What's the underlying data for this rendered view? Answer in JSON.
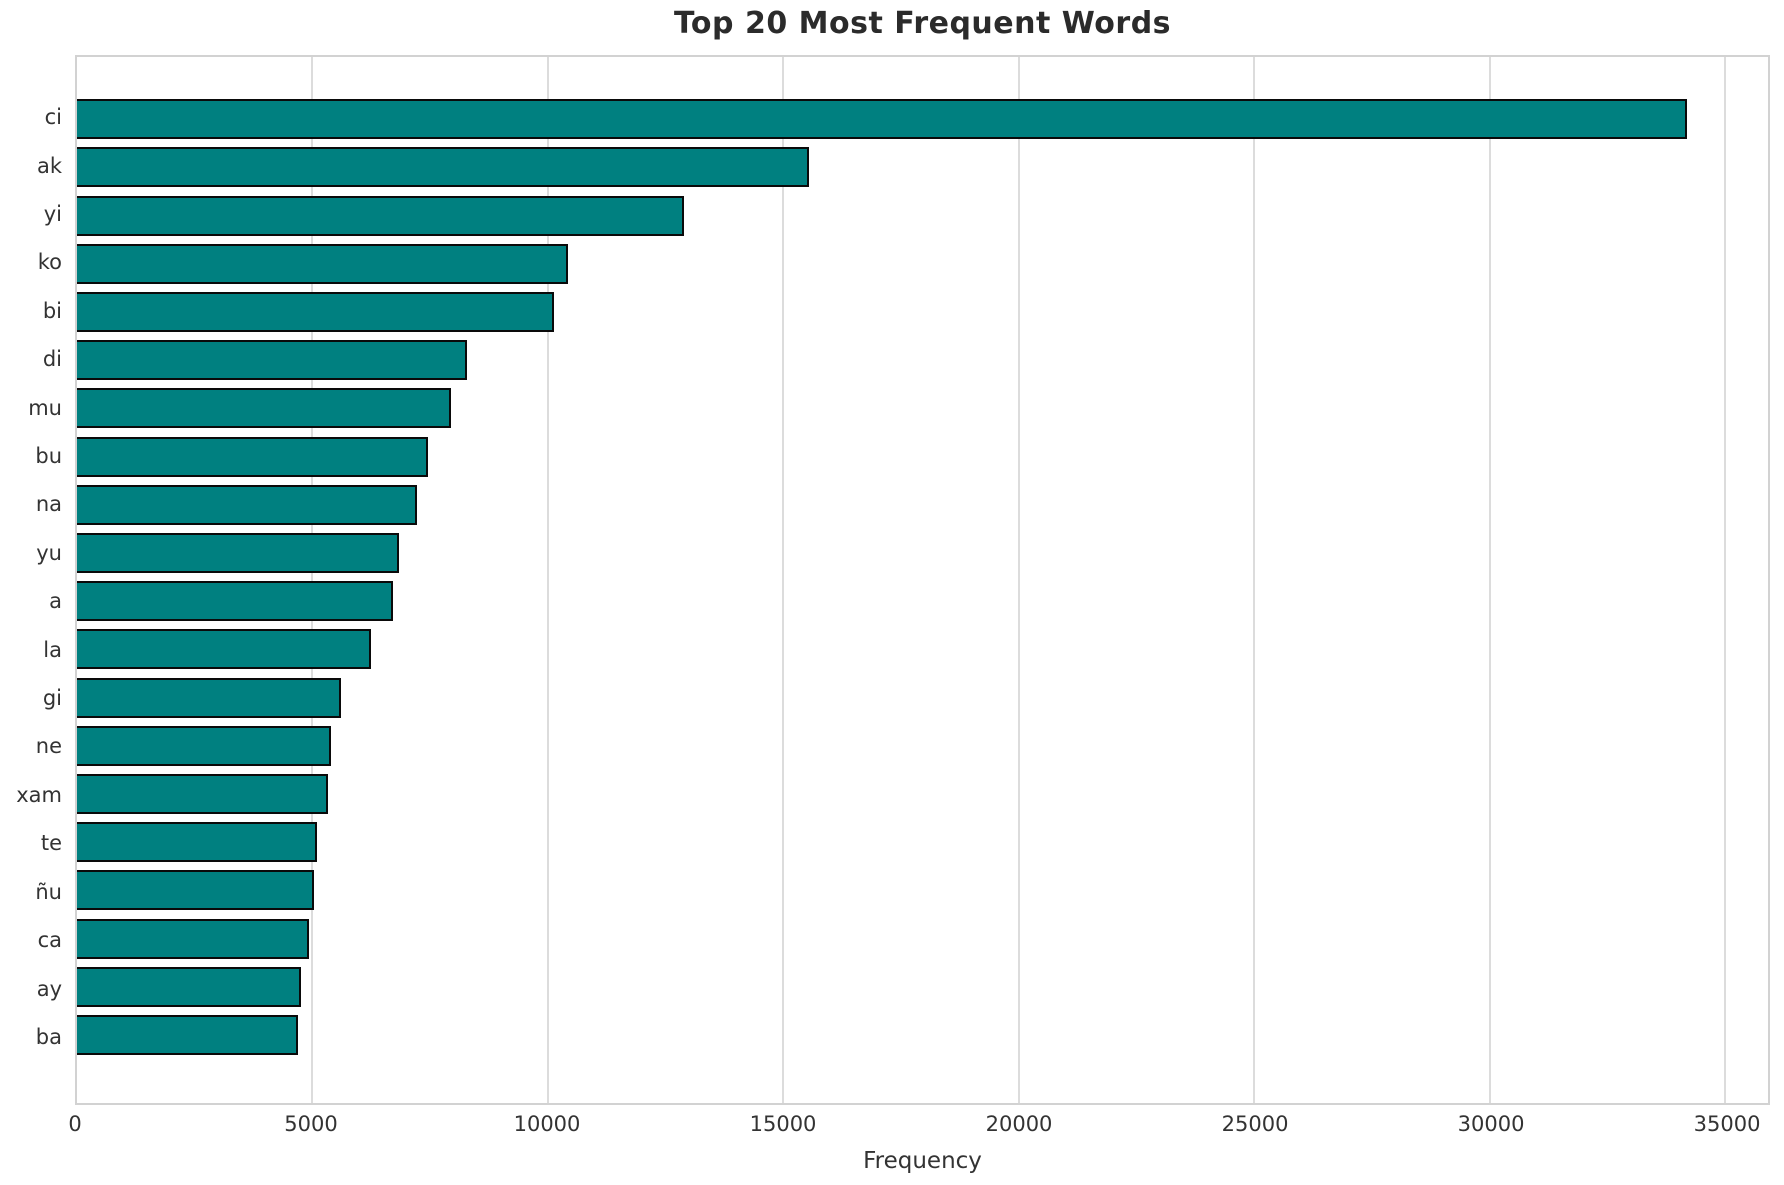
{
  "title": "Top 20 Most Frequent Words",
  "chart_data": {
    "type": "bar",
    "orientation": "horizontal",
    "title": "Top 20 Most Frequent Words",
    "xlabel": "Frequency",
    "ylabel": "",
    "categories": [
      "ci",
      "ak",
      "yi",
      "ko",
      "bi",
      "di",
      "mu",
      "bu",
      "na",
      "yu",
      "a",
      "la",
      "gi",
      "ne",
      "xam",
      "te",
      "ñu",
      "ca",
      "ay",
      "ba"
    ],
    "values": [
      34200,
      15540,
      12880,
      10420,
      10120,
      8290,
      7950,
      7460,
      7210,
      6830,
      6700,
      6250,
      5610,
      5390,
      5320,
      5090,
      5040,
      4920,
      4750,
      4700
    ],
    "x_ticks": [
      0,
      5000,
      10000,
      15000,
      20000,
      25000,
      30000,
      35000
    ],
    "xlim": [
      0,
      35910
    ],
    "grid": true,
    "legend": "none",
    "colors": {
      "bar_fill": "#008080",
      "bar_edge": "#0a0a0a",
      "gridline": "#dcdcdc",
      "plot_border": "#d2d2d2",
      "tick_text": "#333333",
      "title_text": "#2b2b2b",
      "background": "#ffffff"
    }
  }
}
